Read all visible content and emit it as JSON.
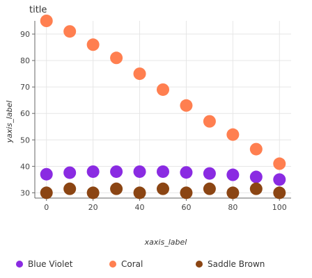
{
  "chart_data": {
    "type": "scatter",
    "title": "title",
    "xlabel": "xaxis_label",
    "ylabel": "yaxis_label",
    "xlim": [
      -5,
      105
    ],
    "ylim": [
      28,
      95
    ],
    "x_ticks": [
      0,
      20,
      40,
      60,
      80,
      100
    ],
    "y_ticks": [
      30,
      40,
      50,
      60,
      70,
      80,
      90
    ],
    "grid": true,
    "legend_position": "bottom",
    "x": [
      0,
      10,
      20,
      30,
      40,
      50,
      60,
      70,
      80,
      90,
      100
    ],
    "series": [
      {
        "name": "Blue Violet",
        "color": "#8a2be2",
        "values": [
          37.0,
          37.6,
          38.0,
          38.0,
          38.0,
          38.0,
          37.7,
          37.3,
          36.8,
          36.0,
          35.0
        ]
      },
      {
        "name": "Coral",
        "color": "#ff7f50",
        "values": [
          95.0,
          91.0,
          86.0,
          81.0,
          75.0,
          69.0,
          63.0,
          57.0,
          52.0,
          46.5,
          41.0
        ]
      },
      {
        "name": "Saddle Brown",
        "color": "#8b4513",
        "values": [
          30.0,
          31.5,
          30.0,
          31.5,
          30.0,
          31.5,
          30.0,
          31.5,
          30.0,
          31.5,
          30.0
        ]
      }
    ]
  }
}
